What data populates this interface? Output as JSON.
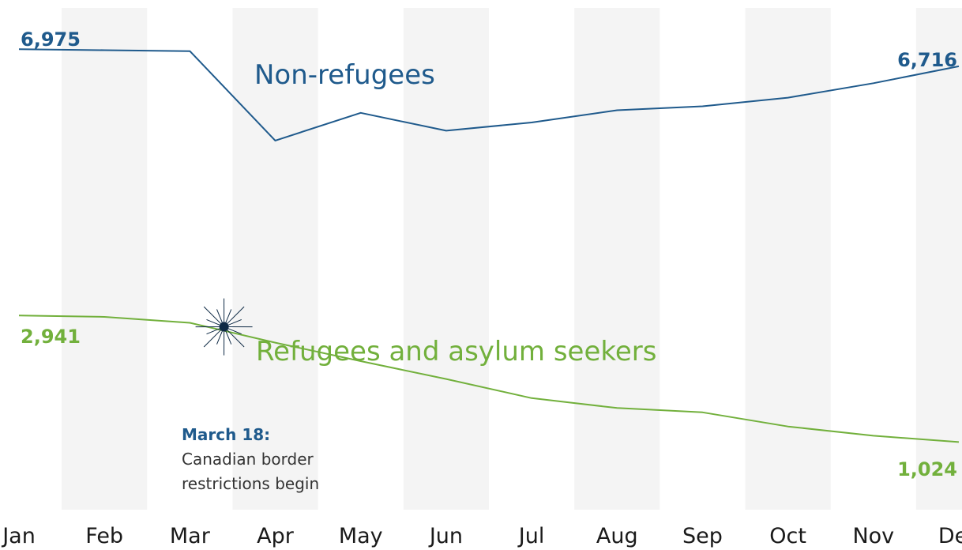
{
  "chart_data": {
    "type": "line",
    "categories": [
      "Jan",
      "Feb",
      "Mar",
      "Apr",
      "May",
      "Jun",
      "Jul",
      "Aug",
      "Sep",
      "Oct",
      "Nov",
      "Dec"
    ],
    "ylim": [
      0,
      7600
    ],
    "grid": "alternating vertical bands",
    "series": [
      {
        "name": "Non-refugees",
        "color": "#1f5a8c",
        "values": [
          6975,
          6960,
          6945,
          5590,
          6010,
          5740,
          5865,
          6050,
          6110,
          6240,
          6460,
          6716
        ],
        "start_label": "6,975",
        "end_label": "6,716"
      },
      {
        "name": "Refugees and asylum seekers",
        "color": "#72b03c",
        "values": [
          2941,
          2920,
          2830,
          2530,
          2250,
          1980,
          1690,
          1540,
          1475,
          1260,
          1120,
          1024
        ],
        "start_label": "2,941",
        "end_label": "1,024"
      }
    ],
    "annotation": {
      "title": "March 18:",
      "lines": [
        "Canadian border",
        "restrictions begin"
      ],
      "marker_color": "#0f2a45",
      "x": 2.4,
      "y": 2770
    }
  }
}
